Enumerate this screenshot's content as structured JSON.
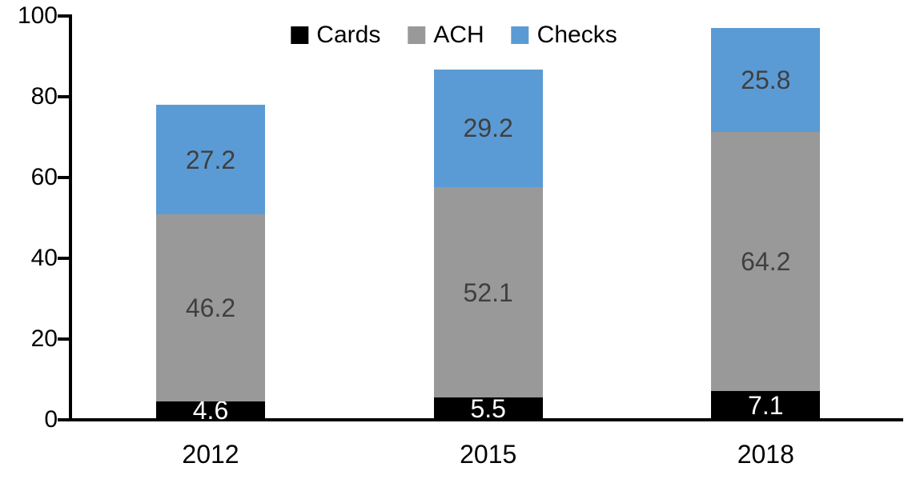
{
  "chart_data": {
    "type": "bar",
    "stacked": true,
    "title": "",
    "xlabel": "",
    "ylabel": "",
    "categories": [
      "2012",
      "2015",
      "2018"
    ],
    "series": [
      {
        "name": "Cards",
        "color": "#000000",
        "label_color": "#ffffff",
        "values": [
          4.6,
          5.5,
          7.1
        ]
      },
      {
        "name": "ACH",
        "color": "#999999",
        "label_color": "#3f3f3f",
        "values": [
          46.2,
          52.1,
          64.2
        ]
      },
      {
        "name": "Checks",
        "color": "#5b9bd5",
        "label_color": "#3f3f3f",
        "values": [
          27.2,
          29.2,
          25.8
        ]
      }
    ],
    "totals": [
      78.0,
      86.8,
      97.1
    ],
    "ylim": [
      0,
      100
    ],
    "yticks": [
      0,
      20,
      40,
      60,
      80,
      100
    ],
    "grid": false,
    "legend_position": "top-center",
    "axis_color": "#000000",
    "background_color": "#ffffff"
  }
}
